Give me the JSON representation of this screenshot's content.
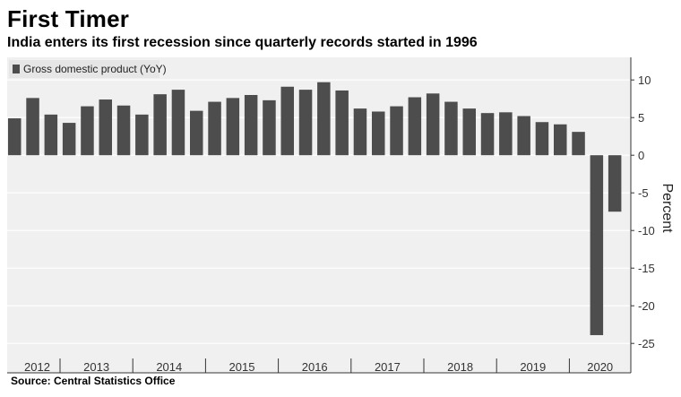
{
  "title": "First Timer",
  "subtitle": "India enters its first recession since quarterly records started in 1996",
  "source": "Source: Central Statistics Office",
  "chart_data": {
    "type": "bar",
    "legend": "Gross domestic product (YoY)",
    "ylabel": "Percent",
    "ylim": [
      -27,
      13
    ],
    "yticks": [
      10,
      5,
      0,
      -5,
      -10,
      -15,
      -20,
      -25
    ],
    "year_labels": [
      "2012",
      "2013",
      "2014",
      "2015",
      "2016",
      "2017",
      "2018",
      "2019",
      "2020"
    ],
    "quarters": [
      "2012Q2",
      "2012Q3",
      "2012Q4",
      "2013Q1",
      "2013Q2",
      "2013Q3",
      "2013Q4",
      "2014Q1",
      "2014Q2",
      "2014Q3",
      "2014Q4",
      "2015Q1",
      "2015Q2",
      "2015Q3",
      "2015Q4",
      "2016Q1",
      "2016Q2",
      "2016Q3",
      "2016Q4",
      "2017Q1",
      "2017Q2",
      "2017Q3",
      "2017Q4",
      "2018Q1",
      "2018Q2",
      "2018Q3",
      "2018Q4",
      "2019Q1",
      "2019Q2",
      "2019Q3",
      "2019Q4",
      "2020Q1",
      "2020Q2",
      "2020Q3"
    ],
    "values": [
      4.9,
      7.6,
      5.4,
      4.3,
      6.5,
      7.4,
      6.6,
      5.4,
      8.1,
      8.7,
      5.9,
      7.1,
      7.6,
      8.0,
      7.3,
      9.1,
      8.7,
      9.7,
      8.6,
      6.2,
      5.8,
      6.5,
      7.7,
      8.2,
      7.1,
      6.2,
      5.6,
      5.7,
      5.2,
      4.4,
      4.1,
      3.1,
      -23.9,
      -7.5
    ],
    "colors": {
      "bar": "#4d4d4d",
      "background": "#f0f0f0"
    }
  }
}
